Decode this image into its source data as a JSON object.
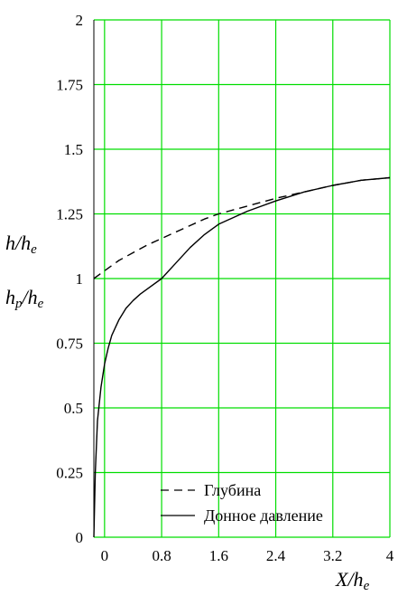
{
  "chart_data": {
    "type": "line",
    "xlim": [
      -0.15,
      4
    ],
    "ylim": [
      0,
      2
    ],
    "xticks": [
      "0",
      "0.8",
      "1.6",
      "2.4",
      "3.2",
      "4"
    ],
    "xtick_values": [
      0,
      0.8,
      1.6,
      2.4,
      3.2,
      4
    ],
    "yticks": [
      "0",
      "0.25",
      "0.5",
      "0.75",
      "1",
      "1.25",
      "1.5",
      "1.75",
      "2"
    ],
    "ytick_values": [
      0,
      0.25,
      0.5,
      0.75,
      1,
      1.25,
      1.5,
      1.75,
      2
    ],
    "xlabel": {
      "main": "X/h",
      "sub": "e"
    },
    "ylabel_top": {
      "main": "h/h",
      "sub": "e"
    },
    "ylabel_bottom": {
      "main": "h",
      "sub1": "p",
      "mid": "/h",
      "sub2": "e"
    },
    "grid": true,
    "grid_color": "#00dd00",
    "legend_position": "bottom-right",
    "series": [
      {
        "name": "Глубина",
        "style": "dashed",
        "color": "#000000",
        "x": [
          -0.15,
          0.0,
          0.2,
          0.4,
          0.6,
          0.8,
          1.0,
          1.2,
          1.4,
          1.6,
          2.0,
          2.4,
          2.8,
          3.2,
          3.6,
          4.0
        ],
        "y": [
          1.0,
          1.03,
          1.07,
          1.1,
          1.13,
          1.155,
          1.18,
          1.205,
          1.23,
          1.25,
          1.28,
          1.31,
          1.335,
          1.36,
          1.38,
          1.39
        ]
      },
      {
        "name": "Донное давление",
        "style": "solid",
        "color": "#000000",
        "x": [
          -0.15,
          -0.13,
          -0.1,
          -0.05,
          0.0,
          0.05,
          0.1,
          0.2,
          0.3,
          0.4,
          0.5,
          0.6,
          0.8,
          1.0,
          1.2,
          1.4,
          1.6,
          2.0,
          2.4,
          2.8,
          3.2,
          3.6,
          4.0
        ],
        "y": [
          0.0,
          0.25,
          0.45,
          0.58,
          0.67,
          0.73,
          0.78,
          0.84,
          0.885,
          0.915,
          0.94,
          0.96,
          1.0,
          1.06,
          1.12,
          1.17,
          1.21,
          1.26,
          1.3,
          1.335,
          1.36,
          1.38,
          1.39
        ]
      }
    ]
  }
}
